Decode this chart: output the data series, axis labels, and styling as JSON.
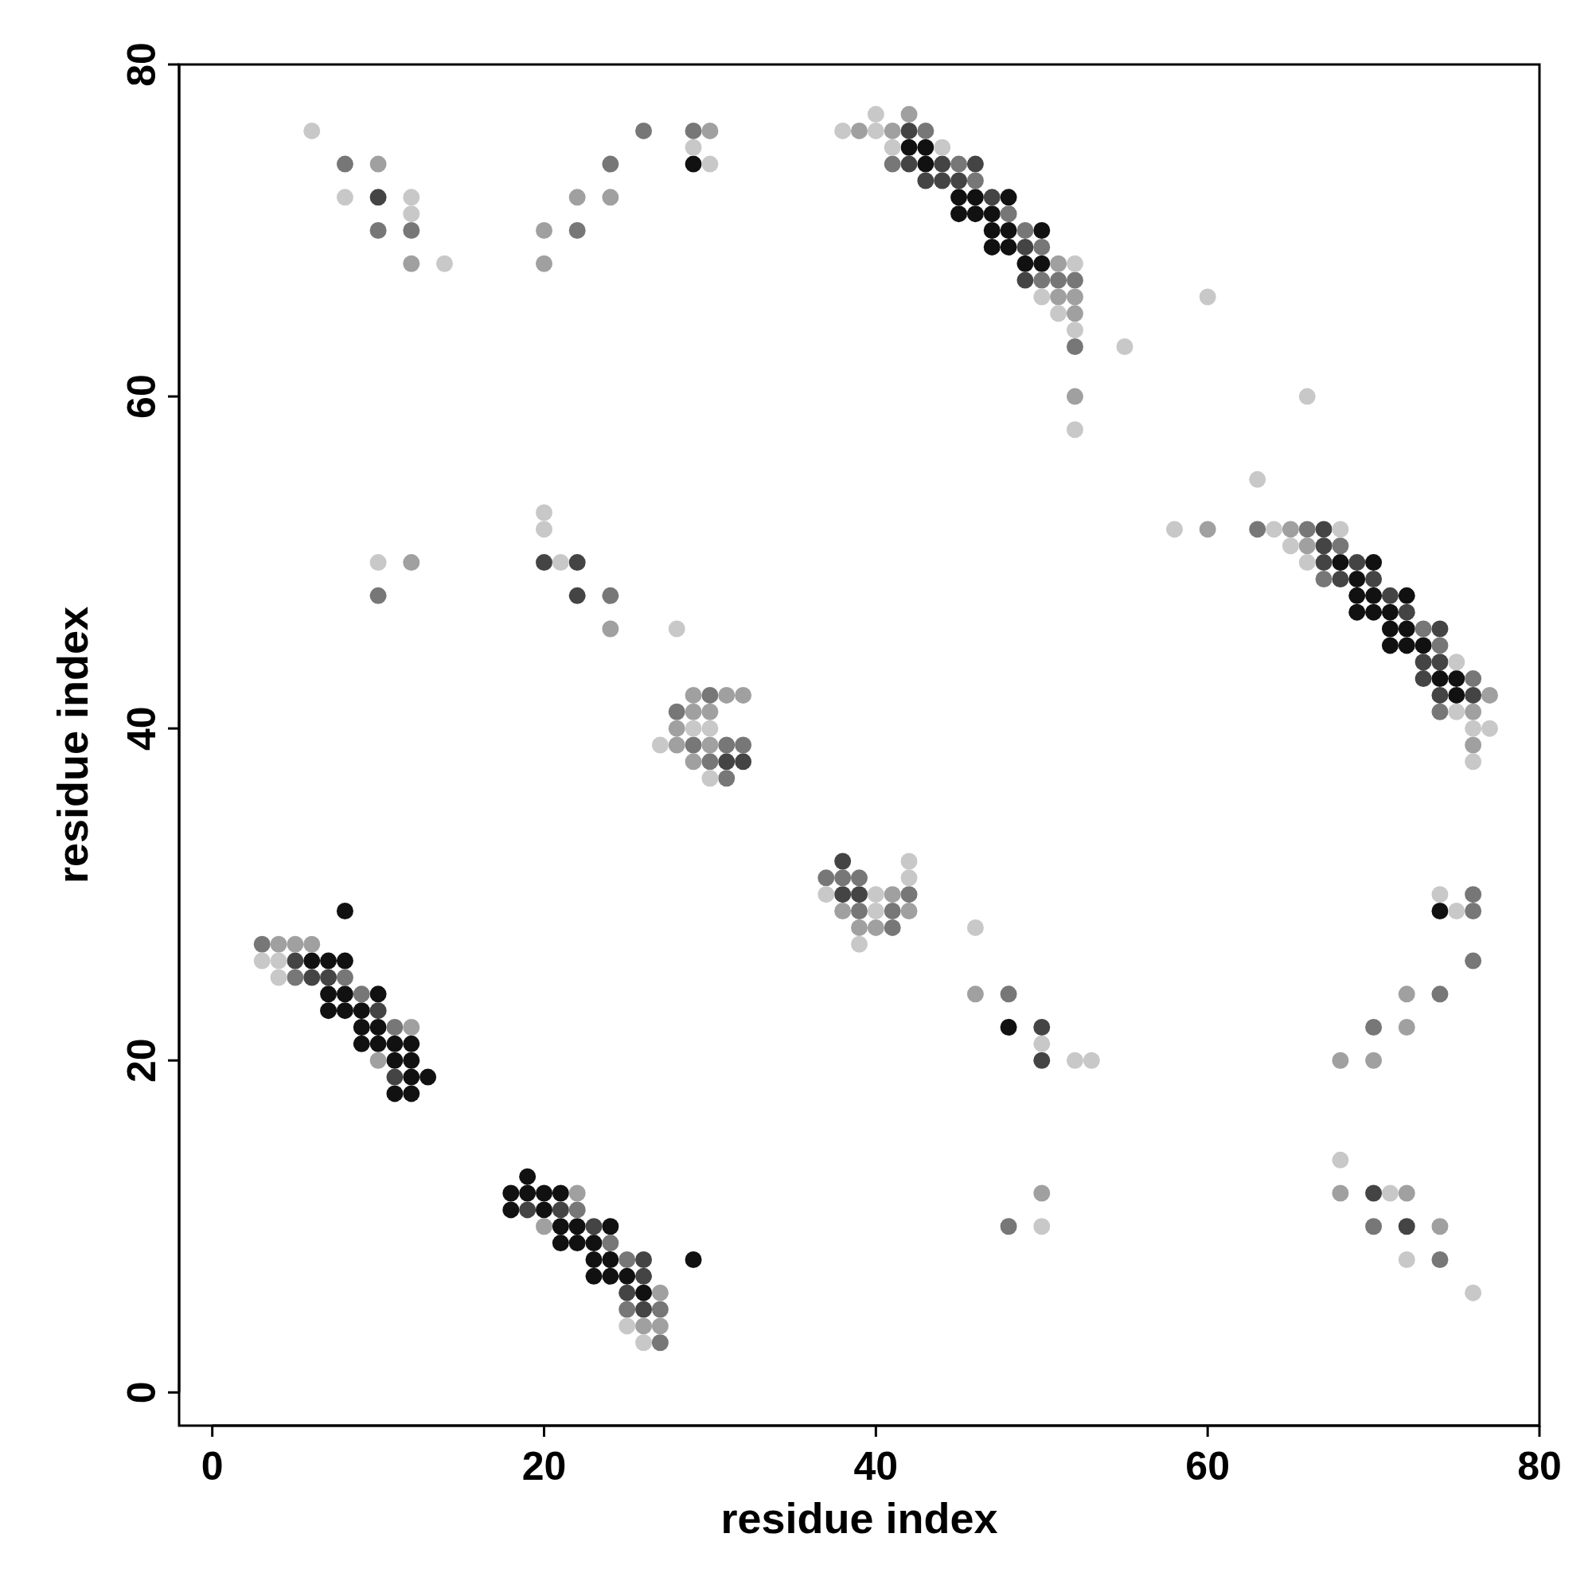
{
  "chart_data": {
    "type": "scatter",
    "xlabel": "residue index",
    "ylabel": "residue index",
    "xlim": [
      -2,
      80
    ],
    "ylim": [
      -2,
      80
    ],
    "xticks": [
      0,
      20,
      40,
      60,
      80
    ],
    "yticks": [
      0,
      20,
      40,
      60,
      80
    ],
    "marker": "circle",
    "grid": false,
    "series": [
      {
        "color": "#111111",
        "x": [
          29,
          42,
          43,
          43,
          45,
          45,
          46,
          46,
          47,
          47,
          47,
          48,
          48,
          48,
          49,
          50,
          50,
          68,
          69,
          69,
          69,
          70,
          70,
          70,
          71,
          71,
          71,
          72,
          72,
          72,
          73,
          74,
          75,
          75,
          48,
          74,
          6,
          7,
          7,
          7,
          8,
          8,
          8,
          8,
          9,
          9,
          9,
          10,
          10,
          10,
          11,
          11,
          11,
          12,
          12,
          12,
          12,
          13,
          18,
          18,
          19,
          19,
          20,
          20,
          21,
          21,
          21,
          22,
          22,
          23,
          23,
          23,
          24,
          24,
          24,
          25,
          26,
          29
        ],
        "values": [
          74,
          75,
          75,
          74,
          72,
          71,
          72,
          71,
          71,
          70,
          69,
          72,
          70,
          69,
          68,
          70,
          68,
          50,
          49,
          48,
          47,
          50,
          48,
          47,
          47,
          46,
          45,
          48,
          46,
          45,
          45,
          43,
          43,
          42,
          22,
          29,
          26,
          26,
          24,
          23,
          29,
          26,
          24,
          23,
          23,
          22,
          21,
          24,
          22,
          21,
          21,
          20,
          18,
          21,
          20,
          19,
          18,
          19,
          12,
          11,
          13,
          12,
          12,
          11,
          12,
          10,
          9,
          10,
          9,
          9,
          8,
          7,
          10,
          8,
          7,
          7,
          6,
          8
        ]
      },
      {
        "color": "#444444",
        "x": [
          10,
          42,
          42,
          43,
          44,
          44,
          45,
          46,
          47,
          49,
          49,
          20,
          22,
          22,
          31,
          32,
          67,
          67,
          67,
          68,
          69,
          70,
          71,
          72,
          73,
          73,
          74,
          74,
          74,
          76,
          38,
          38,
          39,
          50,
          50,
          70,
          72,
          5,
          6,
          7,
          10,
          11,
          19,
          21,
          23,
          25,
          26,
          26,
          26
        ],
        "values": [
          72,
          76,
          74,
          73,
          74,
          73,
          73,
          74,
          72,
          69,
          67,
          50,
          50,
          48,
          38,
          38,
          52,
          51,
          50,
          49,
          50,
          49,
          48,
          47,
          44,
          43,
          46,
          44,
          42,
          42,
          32,
          30,
          30,
          22,
          20,
          12,
          10,
          26,
          25,
          25,
          23,
          19,
          11,
          11,
          10,
          6,
          8,
          7,
          5
        ]
      },
      {
        "color": "#777777",
        "x": [
          8,
          10,
          12,
          22,
          24,
          26,
          29,
          41,
          43,
          45,
          46,
          48,
          49,
          50,
          50,
          51,
          52,
          52,
          10,
          24,
          28,
          29,
          30,
          30,
          31,
          31,
          32,
          63,
          66,
          67,
          68,
          73,
          74,
          74,
          76,
          37,
          38,
          39,
          39,
          41,
          41,
          42,
          48,
          76,
          76,
          76,
          74,
          70,
          3,
          5,
          8,
          9,
          11,
          22,
          24,
          25,
          25,
          27,
          27,
          48,
          70,
          74
        ],
        "values": [
          74,
          70,
          70,
          70,
          74,
          76,
          76,
          74,
          76,
          74,
          73,
          71,
          70,
          69,
          67,
          67,
          67,
          63,
          48,
          48,
          41,
          39,
          42,
          38,
          39,
          37,
          39,
          52,
          52,
          49,
          51,
          46,
          45,
          41,
          43,
          31,
          31,
          31,
          29,
          29,
          28,
          30,
          24,
          30,
          29,
          26,
          24,
          22,
          27,
          25,
          25,
          24,
          22,
          11,
          9,
          8,
          5,
          5,
          3,
          10,
          10,
          8
        ]
      },
      {
        "color": "#a0a0a0",
        "x": [
          10,
          12,
          20,
          20,
          22,
          24,
          30,
          39,
          41,
          42,
          51,
          51,
          52,
          52,
          52,
          12,
          24,
          28,
          28,
          29,
          29,
          29,
          30,
          30,
          31,
          32,
          60,
          65,
          66,
          76,
          76,
          77,
          39,
          40,
          41,
          42,
          38,
          46,
          72,
          72,
          68,
          70,
          4,
          5,
          6,
          10,
          12,
          20,
          22,
          26,
          27,
          27,
          50,
          68,
          72,
          74
        ],
        "values": [
          74,
          68,
          70,
          68,
          72,
          72,
          76,
          76,
          76,
          77,
          68,
          66,
          66,
          65,
          60,
          50,
          46,
          40,
          39,
          42,
          41,
          38,
          41,
          39,
          42,
          42,
          52,
          52,
          51,
          41,
          39,
          42,
          28,
          28,
          30,
          29,
          29,
          24,
          24,
          22,
          20,
          20,
          27,
          27,
          27,
          20,
          22,
          10,
          12,
          4,
          6,
          4,
          12,
          12,
          12,
          10
        ]
      },
      {
        "color": "#c8c8c8",
        "x": [
          6,
          8,
          12,
          12,
          14,
          29,
          30,
          38,
          40,
          40,
          41,
          44,
          50,
          51,
          52,
          52,
          52,
          55,
          60,
          66,
          10,
          20,
          20,
          21,
          28,
          27,
          29,
          30,
          30,
          63,
          58,
          64,
          65,
          66,
          68,
          75,
          75,
          76,
          76,
          77,
          37,
          39,
          40,
          40,
          42,
          42,
          46,
          50,
          52,
          53,
          74,
          75,
          3,
          4,
          4,
          25,
          26,
          50,
          68,
          71,
          72,
          76
        ],
        "values": [
          76,
          72,
          72,
          71,
          68,
          75,
          74,
          76,
          77,
          76,
          75,
          75,
          66,
          65,
          68,
          64,
          58,
          63,
          66,
          60,
          50,
          53,
          52,
          50,
          46,
          39,
          40,
          40,
          37,
          55,
          52,
          52,
          51,
          50,
          52,
          44,
          41,
          40,
          38,
          40,
          30,
          27,
          30,
          29,
          32,
          31,
          28,
          21,
          20,
          20,
          30,
          29,
          26,
          26,
          25,
          4,
          3,
          10,
          14,
          12,
          8,
          6
        ]
      }
    ]
  }
}
